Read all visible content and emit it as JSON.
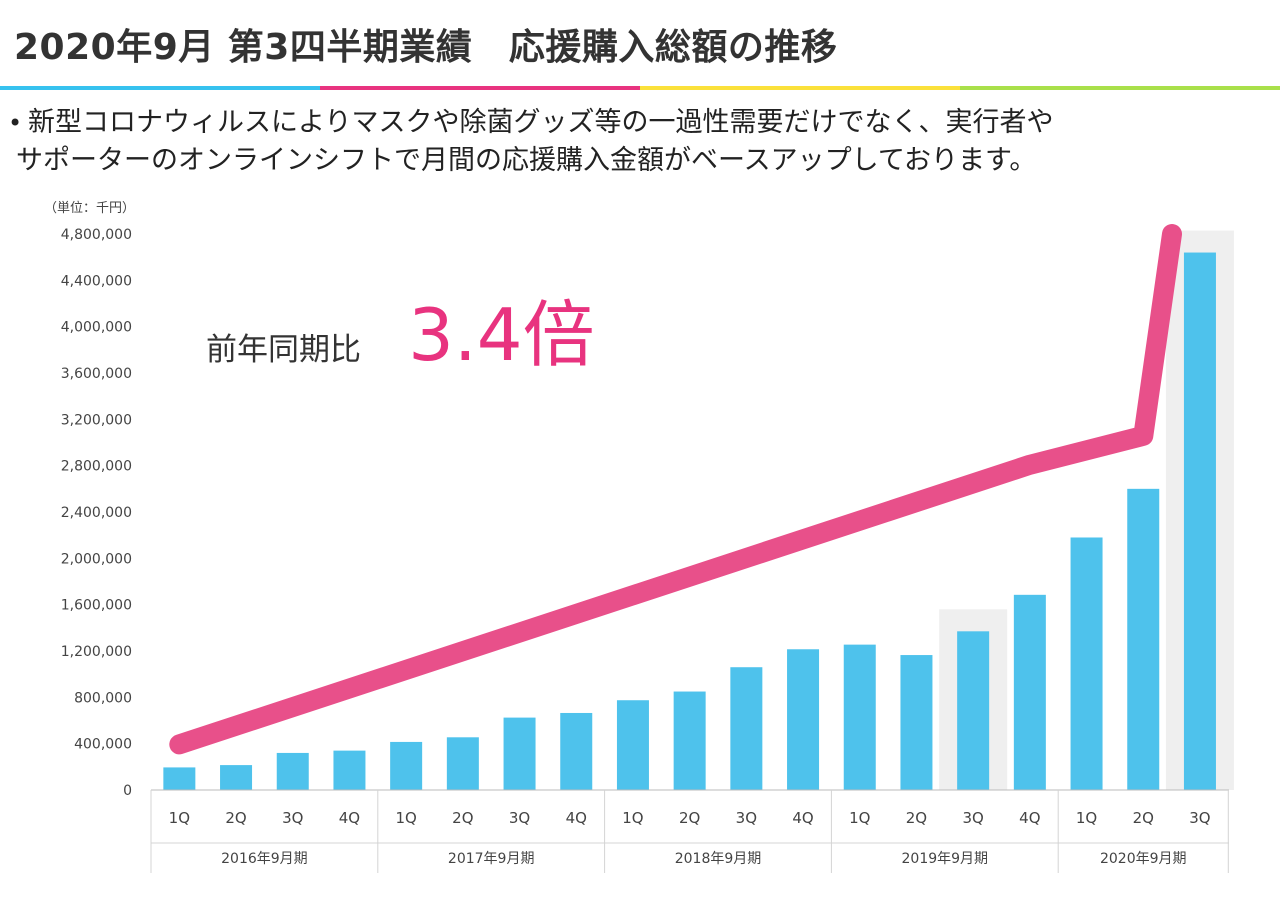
{
  "header": {
    "title": "2020年9月 第3四半期業績　応援購入総額の推移",
    "rule_colors": [
      "#36c2ef",
      "#e8337f",
      "#fbe13a",
      "#a9e04a"
    ]
  },
  "bullet": {
    "marker": "•",
    "line1": "新型コロナウィルスによりマスクや除菌グッズ等の一過性需要だけでなく、実行者や",
    "line2": "サポーターのオンラインシフトで月間の応援購入金額がベースアップしております。"
  },
  "callout": {
    "label": "前年同期比",
    "value": "3.4倍"
  },
  "chart_data": {
    "type": "bar",
    "unit_label": "（単位：千円）",
    "ylim": [
      0,
      4800000
    ],
    "yticks": [
      0,
      400000,
      800000,
      1200000,
      1600000,
      2000000,
      2400000,
      2800000,
      3200000,
      3600000,
      4000000,
      4400000,
      4800000
    ],
    "ytick_labels": [
      "0",
      "400,000",
      "800,000",
      "1,200,000",
      "1,600,000",
      "2,000,000",
      "2,400,000",
      "2,800,000",
      "3,200,000",
      "3,600,000",
      "4,000,000",
      "4,400,000",
      "4,800,000"
    ],
    "groups": [
      {
        "label": "2016年9月期",
        "quarters": [
          "1Q",
          "2Q",
          "3Q",
          "4Q"
        ],
        "values": [
          195000,
          215000,
          320000,
          340000
        ]
      },
      {
        "label": "2017年9月期",
        "quarters": [
          "1Q",
          "2Q",
          "3Q",
          "4Q"
        ],
        "values": [
          415000,
          455000,
          625000,
          665000
        ]
      },
      {
        "label": "2018年9月期",
        "quarters": [
          "1Q",
          "2Q",
          "3Q",
          "4Q"
        ],
        "values": [
          775000,
          850000,
          1060000,
          1215000
        ]
      },
      {
        "label": "2019年9月期",
        "quarters": [
          "1Q",
          "2Q",
          "3Q",
          "4Q"
        ],
        "values": [
          1255000,
          1165000,
          1370000,
          1685000
        ]
      },
      {
        "label": "2020年9月期",
        "quarters": [
          "1Q",
          "2Q",
          "3Q"
        ],
        "values": [
          2180000,
          2600000,
          4640000
        ]
      }
    ],
    "highlighted": [
      "2019年9月期 3Q",
      "2020年9月期 3Q"
    ],
    "trend_line": {
      "from": "2016年9月期 1Q",
      "to": "2020年9月期 3Q",
      "style": "thick pink arrow-like trend"
    },
    "colors": {
      "bar": "#4ec2ec",
      "highlight_bg": "#efefef",
      "trend": "#e8508a",
      "axis": "#bbbbbb"
    }
  }
}
